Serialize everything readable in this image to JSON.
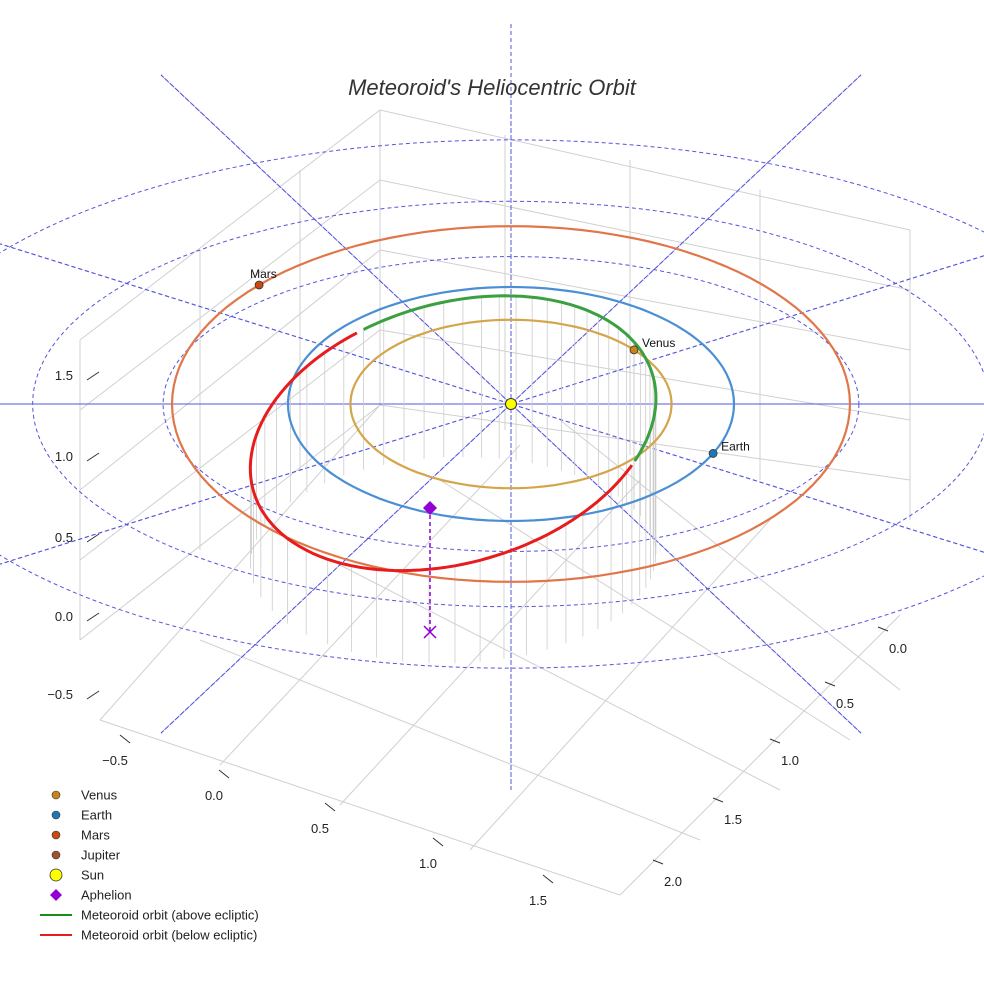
{
  "chart_data": {
    "type": "3d-orbit",
    "title": "Meteoroid's Heliocentric Orbit",
    "axes": {
      "x_ticks": [
        "−0.5",
        "0.0",
        "0.5",
        "1.0",
        "1.5"
      ],
      "y_ticks": [
        "0.0",
        "0.5",
        "1.0",
        "1.5",
        "2.0"
      ],
      "z_ticks": [
        "−0.5",
        "0.0",
        "0.5",
        "1.0",
        "1.5"
      ]
    },
    "grid": true,
    "legend_position": "bottom-left",
    "sun": {
      "name": "Sun",
      "color": "#ffff00",
      "x": 0,
      "y": 0,
      "z": 0
    },
    "planets": [
      {
        "name": "Venus",
        "label": "Venus",
        "radius_au": 0.72,
        "color": "#d4a54a",
        "marker": "#c8841a",
        "angle_deg": 40
      },
      {
        "name": "Earth",
        "label": "Earth",
        "radius_au": 1.0,
        "color": "#4a8fd4",
        "marker": "#1f77b4",
        "angle_deg": -25
      },
      {
        "name": "Mars",
        "label": "Mars",
        "radius_au": 1.52,
        "color": "#e0764a",
        "marker": "#c84a14",
        "angle_deg": 138
      },
      {
        "name": "Jupiter",
        "label": "",
        "radius_au": 5.2,
        "color": "#a0522d",
        "marker": "#a0522d",
        "angle_deg": 0
      }
    ],
    "meteoroid": {
      "semi_major_axis_au": 0.92,
      "eccentricity": 0.32,
      "aphelion_au": 1.22,
      "perihelion_au": 0.63,
      "aphelion_z_au": 0.25
    },
    "legend": [
      {
        "label": "Venus",
        "symbol": "dot",
        "color": "#c8841a"
      },
      {
        "label": "Earth",
        "symbol": "dot",
        "color": "#1f77b4"
      },
      {
        "label": "Mars",
        "symbol": "dot",
        "color": "#c84a14"
      },
      {
        "label": "Jupiter",
        "symbol": "dot",
        "color": "#a0522d"
      },
      {
        "label": "Sun",
        "symbol": "big-dot",
        "color": "#ffff00"
      },
      {
        "label": "Aphelion",
        "symbol": "diamond",
        "color": "#9400d3"
      },
      {
        "label": "Meteoroid orbit (above ecliptic)",
        "symbol": "line",
        "color": "#1a8c1a"
      },
      {
        "label": "Meteoroid orbit (below ecliptic)",
        "symbol": "line",
        "color": "#e81c1c"
      }
    ],
    "colors": {
      "above": "#3aa040",
      "below": "#e81c1c",
      "reference": "#5555dd",
      "aphelion": "#9400d3",
      "grid": "#d0d0d0"
    }
  }
}
